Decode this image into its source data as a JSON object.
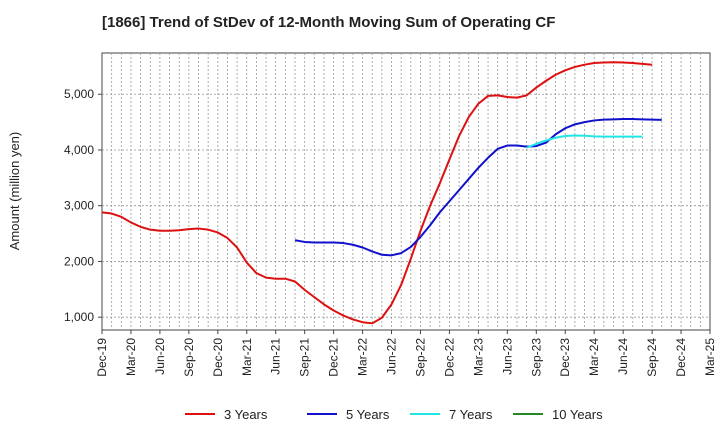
{
  "chart_data": {
    "type": "line",
    "title": "[1866]  Trend of StDev of 12-Month Moving Sum of Operating CF",
    "xlabel": "",
    "ylabel": "Amount (million yen)",
    "ylim": [
      770,
      5740
    ],
    "yticks": [
      1000,
      2000,
      3000,
      4000,
      5000
    ],
    "ytick_labels": [
      "1,000",
      "2,000",
      "3,000",
      "4,000",
      "5,000"
    ],
    "x_months": [
      "Dec-19",
      "Jan-20",
      "Feb-20",
      "Mar-20",
      "Apr-20",
      "May-20",
      "Jun-20",
      "Jul-20",
      "Aug-20",
      "Sep-20",
      "Oct-20",
      "Nov-20",
      "Dec-20",
      "Jan-21",
      "Feb-21",
      "Mar-21",
      "Apr-21",
      "May-21",
      "Jun-21",
      "Jul-21",
      "Aug-21",
      "Sep-21",
      "Oct-21",
      "Nov-21",
      "Dec-21",
      "Jan-22",
      "Feb-22",
      "Mar-22",
      "Apr-22",
      "May-22",
      "Jun-22",
      "Jul-22",
      "Aug-22",
      "Sep-22",
      "Oct-22",
      "Nov-22",
      "Dec-22",
      "Jan-23",
      "Feb-23",
      "Mar-23",
      "Apr-23",
      "May-23",
      "Jun-23",
      "Jul-23",
      "Aug-23",
      "Sep-23",
      "Oct-23",
      "Nov-23",
      "Dec-23",
      "Jan-24",
      "Feb-24",
      "Mar-24",
      "Apr-24",
      "May-24",
      "Jun-24",
      "Jul-24",
      "Aug-24",
      "Sep-24",
      "Oct-24",
      "Nov-24",
      "Dec-24",
      "Jan-25",
      "Feb-25",
      "Mar-25"
    ],
    "x_tick_labels": [
      "Dec-19",
      "Mar-20",
      "Jun-20",
      "Sep-20",
      "Dec-20",
      "Mar-21",
      "Jun-21",
      "Sep-21",
      "Dec-21",
      "Mar-22",
      "Jun-22",
      "Sep-22",
      "Dec-22",
      "Mar-23",
      "Jun-23",
      "Sep-23",
      "Dec-23",
      "Mar-24",
      "Jun-24",
      "Sep-24",
      "Dec-24",
      "Mar-25"
    ],
    "legend_position": "bottom",
    "grid": true,
    "series": [
      {
        "name": "3 Years",
        "color": "#dd1111",
        "start_month": "Dec-19",
        "values": [
          2880,
          2860,
          2800,
          2700,
          2620,
          2570,
          2550,
          2550,
          2560,
          2580,
          2590,
          2570,
          2520,
          2420,
          2250,
          1980,
          1790,
          1710,
          1690,
          1690,
          1640,
          1490,
          1360,
          1230,
          1120,
          1030,
          960,
          910,
          890,
          990,
          1230,
          1580,
          2050,
          2550,
          3000,
          3400,
          3830,
          4250,
          4590,
          4830,
          4970,
          4980,
          4950,
          4940,
          4980,
          5120,
          5240,
          5350,
          5430,
          5490,
          5530,
          5560,
          5570,
          5575,
          5570,
          5560,
          5545,
          5530
        ]
      },
      {
        "name": "5 Years",
        "color": "#1111cc",
        "start_month": "Aug-21",
        "values": [
          2380,
          2350,
          2340,
          2340,
          2340,
          2330,
          2300,
          2250,
          2180,
          2120,
          2110,
          2150,
          2260,
          2440,
          2650,
          2880,
          3080,
          3280,
          3480,
          3680,
          3860,
          4020,
          4080,
          4080,
          4060,
          4070,
          4130,
          4280,
          4390,
          4460,
          4500,
          4530,
          4545,
          4550,
          4555,
          4555,
          4550,
          4545,
          4540
        ]
      },
      {
        "name": "7 Years",
        "color": "#22e5e5",
        "start_month": "Aug-23",
        "values": [
          4040,
          4110,
          4170,
          4220,
          4250,
          4260,
          4255,
          4245,
          4240,
          4240,
          4240,
          4240,
          4240
        ]
      },
      {
        "name": "10 Years",
        "color": "#228822",
        "start_month": "",
        "values": []
      }
    ]
  }
}
